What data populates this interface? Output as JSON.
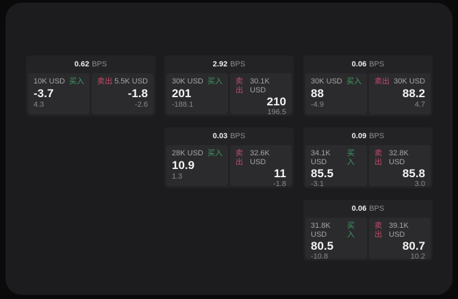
{
  "labels": {
    "bps": "BPS",
    "buy": "买入",
    "sell": "卖出"
  },
  "colors": {
    "page_bg": "#0a0a0b",
    "panel_bg": "#1c1c1e",
    "card_bg": "#232325",
    "tile_bg": "#2b2b2d",
    "buy_green": "#3f9e63",
    "sell_red": "#c3496a"
  },
  "cards": [
    {
      "bps": "0.62",
      "buy": {
        "amount": "10K USD",
        "price": "-3.7",
        "delta": "4.3"
      },
      "sell": {
        "amount": "5.5K USD",
        "price": "-1.8",
        "delta": "-2.6"
      }
    },
    {
      "bps": "2.92",
      "buy": {
        "amount": "30K USD",
        "price": "201",
        "delta": "-188.1"
      },
      "sell": {
        "amount": "30.1K USD",
        "price": "210",
        "delta": "196.5"
      }
    },
    {
      "bps": "0.06",
      "buy": {
        "amount": "30K USD",
        "price": "88",
        "delta": "-4.9"
      },
      "sell": {
        "amount": "30K USD",
        "price": "88.2",
        "delta": "4.7"
      }
    },
    {
      "bps": "0.03",
      "buy": {
        "amount": "28K USD",
        "price": "10.9",
        "delta": "1.3"
      },
      "sell": {
        "amount": "32.6K USD",
        "price": "11",
        "delta": "-1.8"
      }
    },
    {
      "bps": "0.09",
      "buy": {
        "amount": "34.1K USD",
        "price": "85.5",
        "delta": "-3.1"
      },
      "sell": {
        "amount": "32.8K USD",
        "price": "85.8",
        "delta": "3.0"
      }
    },
    {
      "bps": "0.06",
      "buy": {
        "amount": "31.8K USD",
        "price": "80.5",
        "delta": "-10.8"
      },
      "sell": {
        "amount": "39.1K USD",
        "price": "80.7",
        "delta": "10.2"
      }
    }
  ]
}
